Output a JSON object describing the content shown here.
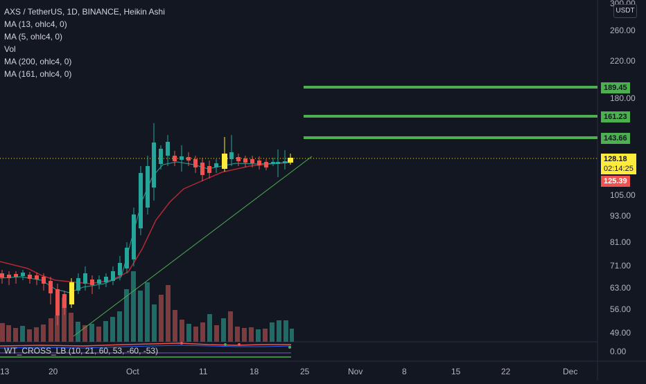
{
  "legend": {
    "symbol": "AXS / TetherUS, 1D, BINANCE, Heikin Ashi",
    "indicators": [
      "MA (13, ohlc4, 0)",
      "MA (5, ohlc4, 0)",
      "Vol",
      "MA (200, ohlc4, 0)",
      "MA (161, ohlc4, 0)"
    ]
  },
  "indicator_pane": {
    "label": "WT_CROSS_LB (10, 21, 60, 53, -60, -53)",
    "zero_label": "0.00"
  },
  "currency": "USDT",
  "price_axis": [
    "300.00",
    "260.00",
    "220.00",
    "180.00",
    "105.00",
    "93.00",
    "81.00",
    "71.00",
    "63.00",
    "56.00",
    "49.00"
  ],
  "time_axis": [
    "13",
    "20",
    "Oct",
    "11",
    "18",
    "25",
    "Nov",
    "8",
    "15",
    "22",
    "Dec"
  ],
  "price_tags": {
    "level1": "189.45",
    "level2": "161.23",
    "level3": "143.66",
    "last_price": "128.18",
    "countdown": "02:14:25",
    "low_marker": "125.39"
  },
  "colors": {
    "background": "#131722",
    "up": "#26a69a",
    "down": "#ef5350",
    "level": "#4caf50",
    "highlight": "#ffeb3b",
    "ma_fast": "#26a69a",
    "ma_slow": "#b22833"
  }
}
